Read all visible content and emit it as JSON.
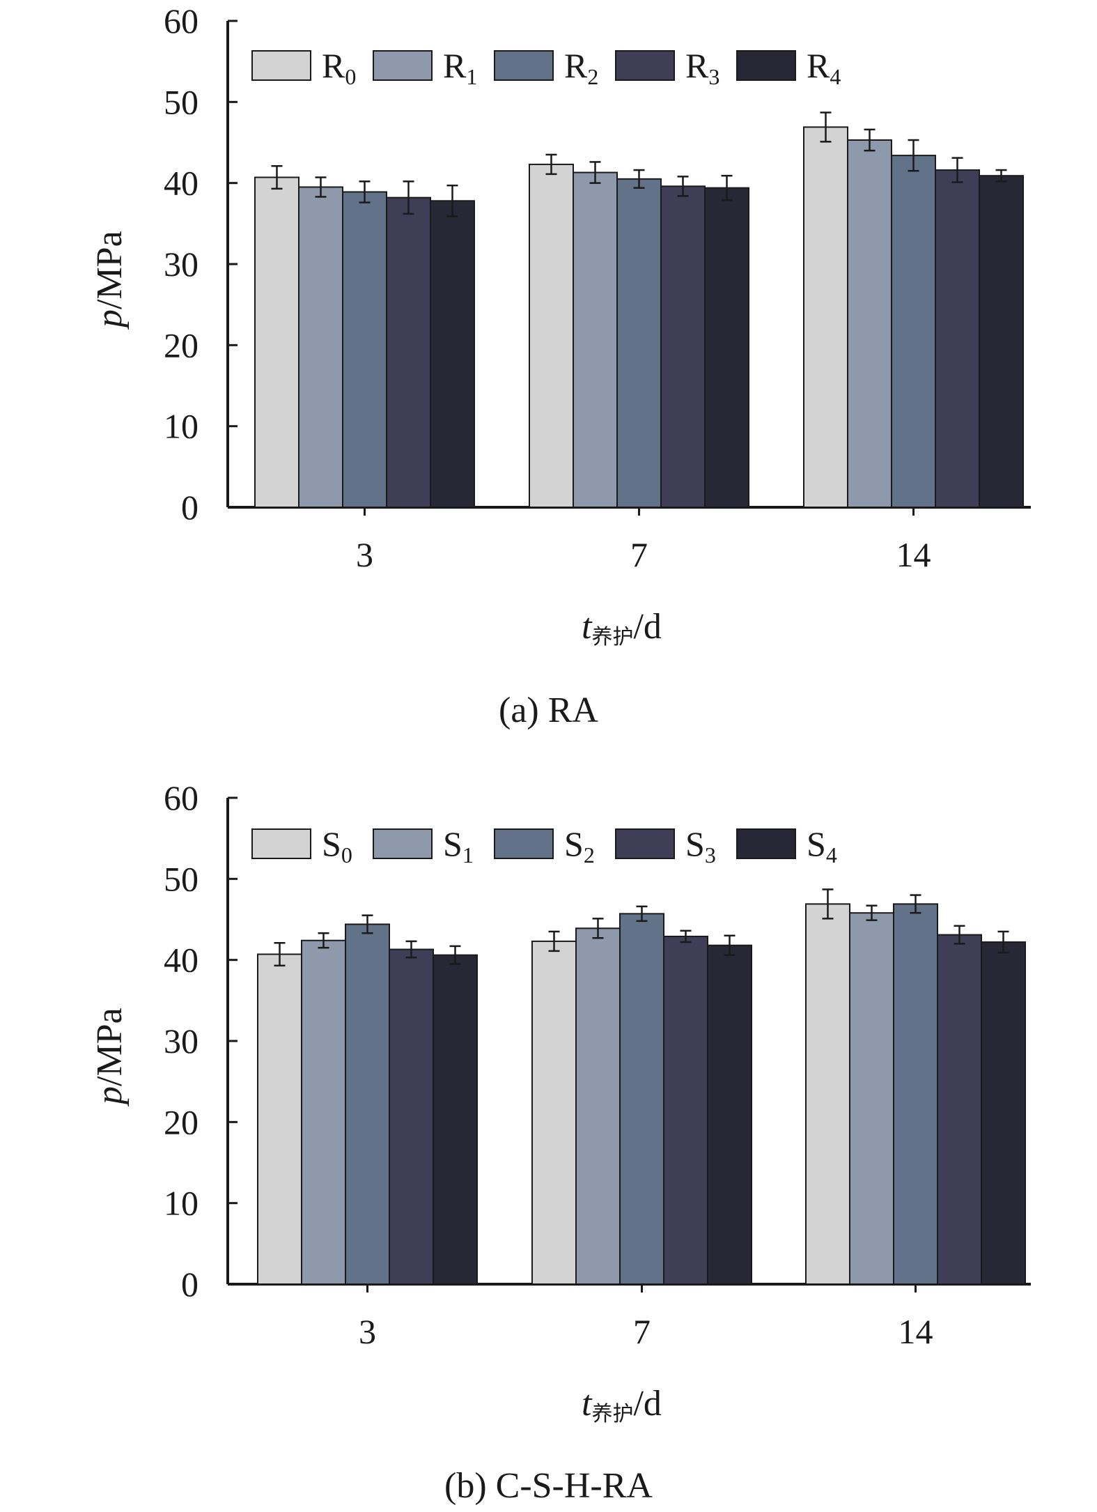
{
  "colors": [
    "#d3d3d3",
    "#8e99ab",
    "#627389",
    "#403e57",
    "#272735"
  ],
  "chart_data": [
    {
      "type": "bar",
      "caption": "(a) RA",
      "ylabel_var": "p",
      "ylabel_unit": "/MPa",
      "xlabel_var": "t",
      "xlabel_sub": "养护",
      "xlabel_unit": "/d",
      "ylim": [
        0,
        60
      ],
      "yticks": [
        "0",
        "10",
        "20",
        "30",
        "40",
        "50",
        "60"
      ],
      "categories": [
        "3",
        "7",
        "14"
      ],
      "legend_position": "top-left",
      "series": [
        {
          "name": "R",
          "sub": "0",
          "values": [
            40.7,
            42.3,
            46.9
          ],
          "errors": [
            1.4,
            1.2,
            1.8
          ]
        },
        {
          "name": "R",
          "sub": "1",
          "values": [
            39.5,
            41.3,
            45.3
          ],
          "errors": [
            1.2,
            1.3,
            1.3
          ]
        },
        {
          "name": "R",
          "sub": "2",
          "values": [
            38.9,
            40.5,
            43.4
          ],
          "errors": [
            1.3,
            1.1,
            1.9
          ]
        },
        {
          "name": "R",
          "sub": "3",
          "values": [
            38.2,
            39.6,
            41.6
          ],
          "errors": [
            2.0,
            1.2,
            1.5
          ]
        },
        {
          "name": "R",
          "sub": "4",
          "values": [
            37.8,
            39.4,
            40.9
          ],
          "errors": [
            1.9,
            1.5,
            0.7
          ]
        }
      ]
    },
    {
      "type": "bar",
      "caption": "(b) C-S-H-RA",
      "ylabel_var": "p",
      "ylabel_unit": "/MPa",
      "xlabel_var": "t",
      "xlabel_sub": "养护",
      "xlabel_unit": "/d",
      "ylim": [
        0,
        60
      ],
      "yticks": [
        "0",
        "10",
        "20",
        "30",
        "40",
        "50",
        "60"
      ],
      "categories": [
        "3",
        "7",
        "14"
      ],
      "legend_position": "top-left",
      "series": [
        {
          "name": "S",
          "sub": "0",
          "values": [
            40.7,
            42.3,
            46.9
          ],
          "errors": [
            1.4,
            1.2,
            1.8
          ]
        },
        {
          "name": "S",
          "sub": "1",
          "values": [
            42.4,
            43.9,
            45.8
          ],
          "errors": [
            0.9,
            1.2,
            0.9
          ]
        },
        {
          "name": "S",
          "sub": "2",
          "values": [
            44.4,
            45.7,
            46.9
          ],
          "errors": [
            1.1,
            0.9,
            1.1
          ]
        },
        {
          "name": "S",
          "sub": "3",
          "values": [
            41.3,
            42.9,
            43.1
          ],
          "errors": [
            1.0,
            0.7,
            1.1
          ]
        },
        {
          "name": "S",
          "sub": "4",
          "values": [
            40.6,
            41.8,
            42.2
          ],
          "errors": [
            1.1,
            1.2,
            1.3
          ]
        }
      ]
    }
  ]
}
